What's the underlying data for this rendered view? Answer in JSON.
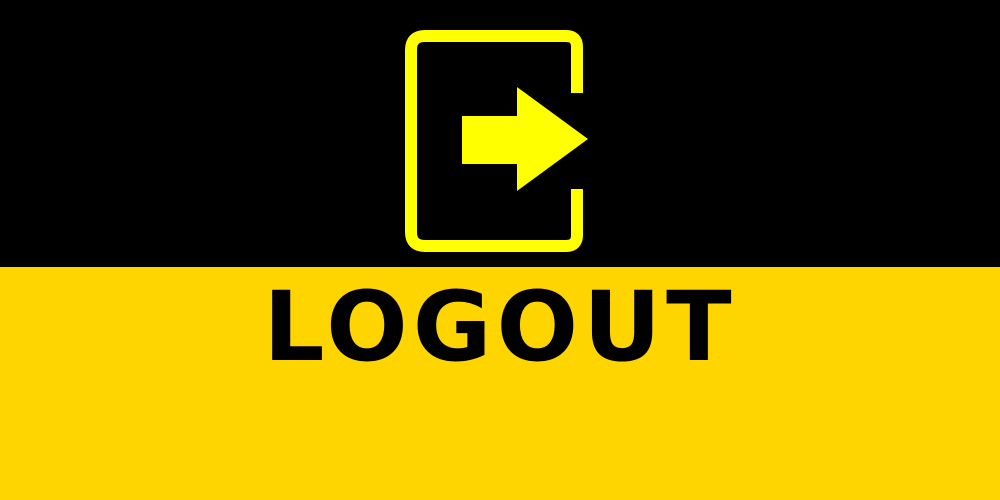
{
  "banner": {
    "label": "LOGOUT",
    "icon": "logout-door-arrow-icon"
  },
  "colors": {
    "top_background": "#000000",
    "bottom_background": "#FFD500",
    "icon": "#FFFF00",
    "label_text": "#000000"
  }
}
